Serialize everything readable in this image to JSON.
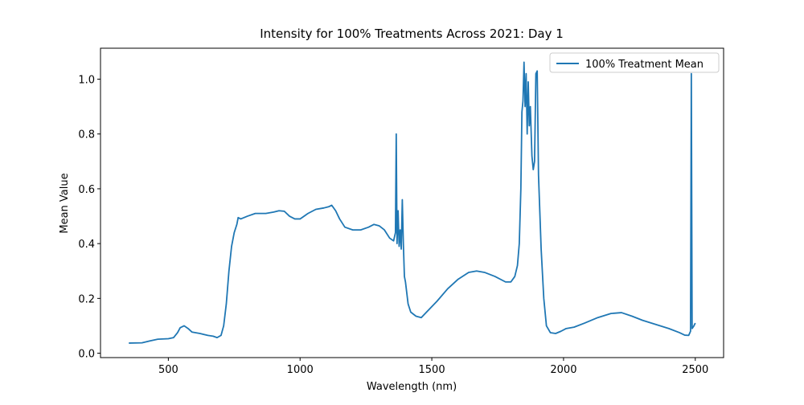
{
  "chart_data": {
    "type": "line",
    "title": "Intensity for 100% Treatments Across 2021: Day 1",
    "x_label": "Wavelength (nm)",
    "y_label": "Mean Value",
    "xlim": [
      242.5,
      2607.5
    ],
    "ylim": [
      -0.016,
      1.113
    ],
    "xticks": [
      500,
      1000,
      1500,
      2000,
      2500
    ],
    "yticks": [
      {
        "value": 0,
        "label": "0.0"
      },
      0.2,
      0.4,
      0.6,
      0.8,
      {
        "value": 1,
        "label": "1.0"
      }
    ],
    "legend": "upper right",
    "x": [
      350,
      400,
      430,
      460,
      500,
      520,
      535,
      545,
      560,
      575,
      590,
      620,
      650,
      670,
      685,
      700,
      710,
      720,
      730,
      740,
      750,
      760,
      765,
      775,
      800,
      830,
      870,
      900,
      920,
      940,
      960,
      980,
      1000,
      1030,
      1060,
      1090,
      1110,
      1120,
      1135,
      1150,
      1170,
      1200,
      1230,
      1260,
      1280,
      1300,
      1320,
      1340,
      1355,
      1362,
      1365,
      1368,
      1372,
      1376,
      1380,
      1384,
      1388,
      1392,
      1396,
      1400,
      1410,
      1420,
      1440,
      1460,
      1480,
      1520,
      1560,
      1600,
      1640,
      1670,
      1700,
      1740,
      1780,
      1800,
      1815,
      1825,
      1832,
      1838,
      1842,
      1846,
      1850,
      1854,
      1858,
      1862,
      1866,
      1870,
      1874,
      1880,
      1885,
      1890,
      1895,
      1900,
      1905,
      1915,
      1925,
      1935,
      1950,
      1970,
      1990,
      2010,
      2040,
      2080,
      2130,
      2180,
      2220,
      2260,
      2300,
      2350,
      2400,
      2440,
      2460,
      2475,
      2482,
      2485,
      2488,
      2495,
      2500
    ],
    "series": [
      {
        "name": "100% Treatment Mean",
        "color": "#1f77b4",
        "values": [
          0.037,
          0.038,
          0.045,
          0.051,
          0.053,
          0.057,
          0.075,
          0.093,
          0.1,
          0.09,
          0.077,
          0.072,
          0.065,
          0.062,
          0.057,
          0.065,
          0.1,
          0.18,
          0.3,
          0.39,
          0.44,
          0.47,
          0.495,
          0.49,
          0.5,
          0.51,
          0.51,
          0.515,
          0.52,
          0.518,
          0.5,
          0.49,
          0.49,
          0.51,
          0.525,
          0.53,
          0.535,
          0.54,
          0.52,
          0.49,
          0.46,
          0.45,
          0.45,
          0.46,
          0.47,
          0.465,
          0.45,
          0.42,
          0.41,
          0.44,
          0.8,
          0.4,
          0.52,
          0.39,
          0.45,
          0.38,
          0.56,
          0.4,
          0.28,
          0.26,
          0.18,
          0.15,
          0.135,
          0.13,
          0.15,
          0.19,
          0.235,
          0.27,
          0.295,
          0.3,
          0.295,
          0.28,
          0.26,
          0.26,
          0.28,
          0.32,
          0.4,
          0.6,
          0.88,
          0.92,
          1.062,
          0.9,
          1.02,
          0.8,
          0.99,
          0.83,
          0.9,
          0.72,
          0.67,
          0.7,
          1.02,
          1.03,
          0.65,
          0.38,
          0.2,
          0.1,
          0.075,
          0.072,
          0.08,
          0.09,
          0.095,
          0.11,
          0.13,
          0.145,
          0.148,
          0.135,
          0.12,
          0.105,
          0.09,
          0.075,
          0.066,
          0.065,
          0.08,
          1.02,
          0.09,
          0.1,
          0.11
        ]
      }
    ]
  }
}
